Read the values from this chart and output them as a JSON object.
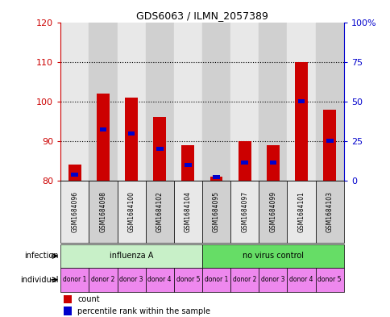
{
  "title": "GDS6063 / ILMN_2057389",
  "samples": [
    "GSM1684096",
    "GSM1684098",
    "GSM1684100",
    "GSM1684102",
    "GSM1684104",
    "GSM1684095",
    "GSM1684097",
    "GSM1684099",
    "GSM1684101",
    "GSM1684103"
  ],
  "red_tops": [
    84,
    102,
    101,
    96,
    89,
    81,
    90,
    89,
    110,
    98
  ],
  "blue_values": [
    81.5,
    93,
    92,
    88,
    84,
    81,
    84.5,
    84.5,
    100,
    90
  ],
  "ymin": 80,
  "ymax": 120,
  "yticks": [
    80,
    90,
    100,
    110,
    120
  ],
  "right_yticks": [
    0,
    25,
    50,
    75,
    100
  ],
  "infection_groups": [
    {
      "label": "influenza A",
      "start": 0,
      "end": 5,
      "color": "#c8f0c8"
    },
    {
      "label": "no virus control",
      "start": 5,
      "end": 10,
      "color": "#66dd66"
    }
  ],
  "individual_labels": [
    "donor 1",
    "donor 2",
    "donor 3",
    "donor 4",
    "donor 5",
    "donor 1",
    "donor 2",
    "donor 3",
    "donor 4",
    "donor 5"
  ],
  "bar_color": "#cc0000",
  "blue_color": "#0000cc",
  "left_tick_color": "#cc0000",
  "right_tick_color": "#0000cc",
  "col_colors": [
    "#e8e8e8",
    "#d0d0d0"
  ],
  "individual_row_color": "#ee88ee",
  "bar_width": 0.45
}
